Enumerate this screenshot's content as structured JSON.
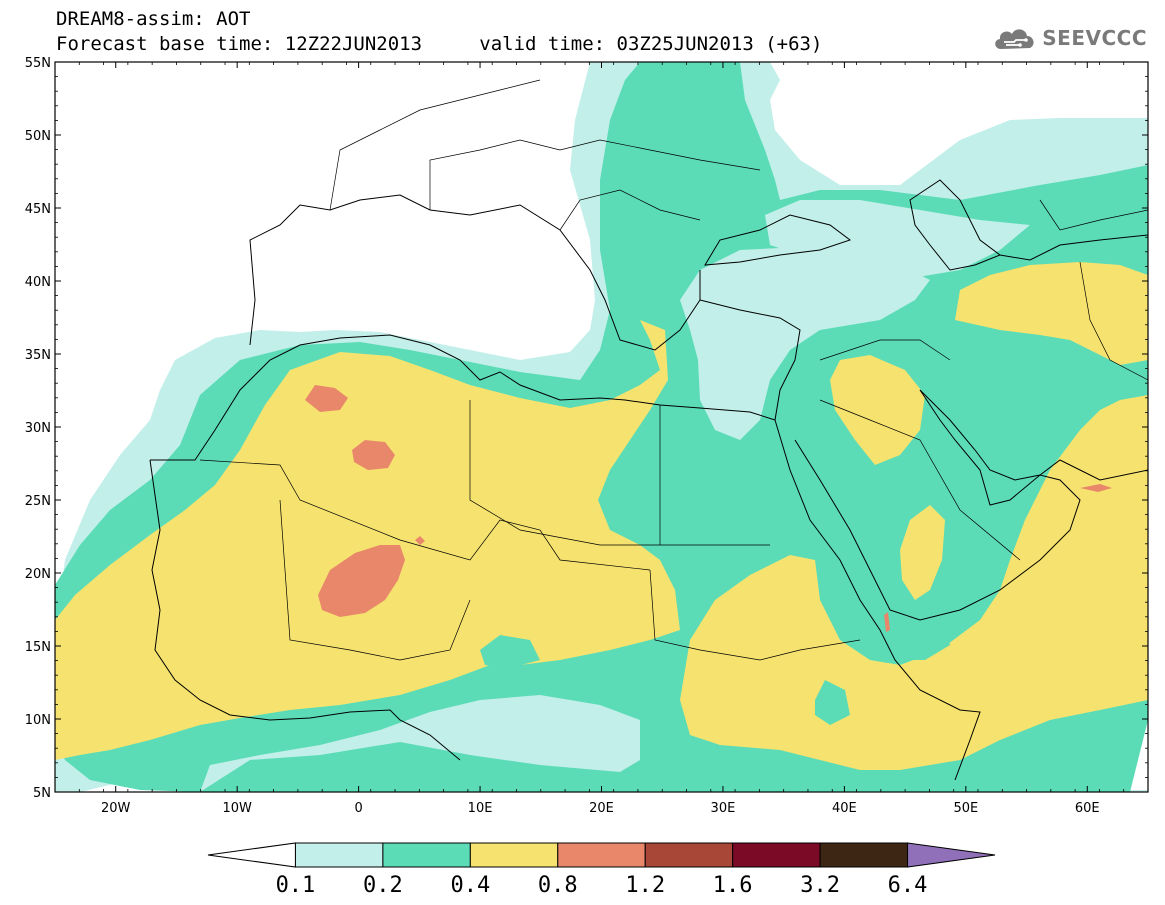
{
  "header": {
    "line1": "DREAM8-assim: AOT",
    "line2_base": "Forecast base time: 12Z22JUN2013",
    "line2_valid": "valid time: 03Z25JUN2013 (+63)"
  },
  "logo": {
    "text": "SEEVCCC",
    "icon": "cloud-icon"
  },
  "map": {
    "lon_range": [
      -25,
      65
    ],
    "lat_range": [
      5,
      55
    ],
    "lat_ticks": [
      {
        "value": 55,
        "label": "55N"
      },
      {
        "value": 50,
        "label": "50N"
      },
      {
        "value": 45,
        "label": "45N"
      },
      {
        "value": 40,
        "label": "40N"
      },
      {
        "value": 35,
        "label": "35N"
      },
      {
        "value": 30,
        "label": "30N"
      },
      {
        "value": 25,
        "label": "25N"
      },
      {
        "value": 20,
        "label": "20N"
      },
      {
        "value": 15,
        "label": "15N"
      },
      {
        "value": 10,
        "label": "10N"
      },
      {
        "value": 5,
        "label": "5N"
      }
    ],
    "lon_ticks": [
      {
        "value": -20,
        "label": "20W"
      },
      {
        "value": -10,
        "label": "10W"
      },
      {
        "value": 0,
        "label": "0"
      },
      {
        "value": 10,
        "label": "10E"
      },
      {
        "value": 20,
        "label": "20E"
      },
      {
        "value": 30,
        "label": "30E"
      },
      {
        "value": 40,
        "label": "40E"
      },
      {
        "value": 50,
        "label": "50E"
      },
      {
        "value": 60,
        "label": "60E"
      }
    ]
  },
  "colorbar": {
    "labels": [
      "0.1",
      "0.2",
      "0.4",
      "0.8",
      "1.2",
      "1.6",
      "3.2",
      "6.4"
    ],
    "colors": [
      "#ffffff",
      "#c2efe9",
      "#5bdcb7",
      "#f6e36f",
      "#e8876a",
      "#a84737",
      "#7a0a26",
      "#3d2614",
      "#9070b8"
    ]
  },
  "colors": {
    "aot_0_1": "#c2efe9",
    "aot_0_2": "#5bdcb7",
    "aot_0_4": "#f6e36f",
    "aot_0_8": "#e8876a",
    "aot_1_2": "#a84737",
    "aot_1_6": "#7a0a26",
    "aot_3_2": "#3d2614",
    "aot_6_4": "#9070b8"
  }
}
